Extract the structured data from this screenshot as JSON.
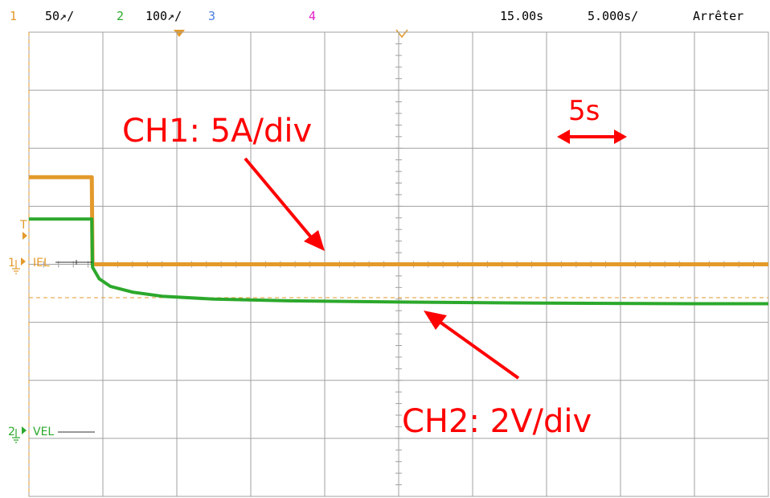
{
  "status_bar": {
    "ch1_number": "1",
    "ch1_scale": "50↗/",
    "ch2_number": "2",
    "ch2_scale": "100↗/",
    "ch3_number": "3",
    "ch4_number": "4",
    "trigger_position": "15.00s",
    "time_per_div": "5.000s/",
    "run_state": "Arrêter"
  },
  "labels": {
    "ch1_marker": "1",
    "ch1_name": "IEL",
    "ch2_marker": "2",
    "ch2_name": "VEL",
    "trigger_marker": "T"
  },
  "annotations": {
    "ch1_note": "CH1: 5A/div",
    "ch2_note": "CH2: 2V/div",
    "time_note": "5s"
  },
  "colors": {
    "ch1": "#e39a2b",
    "ch2": "#2ca82c",
    "ch3": "#4a7de0",
    "ch4": "#e020c8",
    "grid": "#a0a0a0",
    "annotation": "#ff0000"
  },
  "chart_data": {
    "type": "line",
    "x_unit": "div",
    "y_unit": "div",
    "xlim": [
      0,
      10
    ],
    "ylim": [
      -4,
      4
    ],
    "grid": true,
    "series": [
      {
        "name": "IEL",
        "x": [
          0,
          0.85,
          0.86,
          10
        ],
        "y": [
          1.5,
          1.5,
          0.0,
          0.0
        ]
      },
      {
        "name": "VEL",
        "x": [
          0,
          0.85,
          0.86,
          0.95,
          1.1,
          1.4,
          1.8,
          2.5,
          3.5,
          5.0,
          7.0,
          9.0,
          10
        ],
        "y": [
          0.78,
          0.78,
          -0.05,
          -0.25,
          -0.38,
          -0.48,
          -0.55,
          -0.6,
          -0.63,
          -0.65,
          -0.67,
          -0.68,
          -0.68
        ]
      }
    ]
  }
}
